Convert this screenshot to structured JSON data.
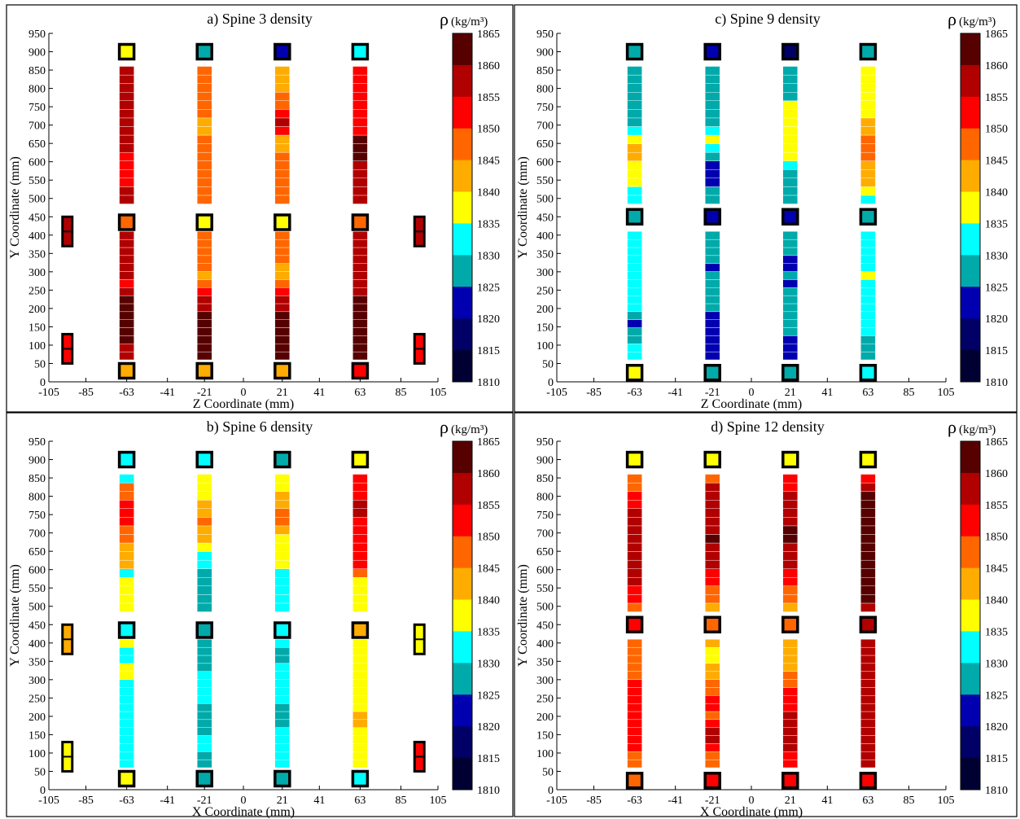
{
  "colorbar": {
    "label_symbol": "ρ",
    "label_unit": "(kg/m³)",
    "ticks": [
      1865,
      1860,
      1855,
      1850,
      1845,
      1840,
      1835,
      1830,
      1825,
      1820,
      1815,
      1810
    ],
    "bins": [
      {
        "min": 1860,
        "color": "#560000"
      },
      {
        "min": 1855,
        "color": "#b10000"
      },
      {
        "min": 1850,
        "color": "#ff0000"
      },
      {
        "min": 1845,
        "color": "#ff6600"
      },
      {
        "min": 1840,
        "color": "#ffac00"
      },
      {
        "min": 1835,
        "color": "#ffff00"
      },
      {
        "min": 1830,
        "color": "#00ffff"
      },
      {
        "min": 1825,
        "color": "#00aaaa"
      },
      {
        "min": 1820,
        "color": "#0000b0"
      },
      {
        "min": 1815,
        "color": "#000066"
      },
      {
        "min": 1810,
        "color": "#000033"
      }
    ]
  },
  "chart_data": [
    {
      "type": "heatmap",
      "title": "a)  Spine 3 density",
      "xlabel": "Z Coordinate (mm)",
      "ylabel": "Y Coordinate (mm)",
      "xlim": [
        -105,
        105
      ],
      "ylim": [
        0,
        950
      ],
      "xticks": [
        -105,
        -85,
        -63,
        -41,
        -21,
        0,
        21,
        41,
        63,
        85,
        105
      ],
      "yticks": [
        0,
        50,
        100,
        150,
        200,
        250,
        300,
        350,
        400,
        450,
        500,
        550,
        600,
        650,
        700,
        750,
        800,
        850,
        900,
        950
      ],
      "columns": [
        {
          "x": -63,
          "density": [
            1857,
            1857,
            1862,
            1862,
            1862,
            1862,
            1862,
            1862,
            1857,
            1852,
            1857,
            1857,
            1857,
            1857,
            1857,
            1857,
            1857,
            1857,
            1852,
            1852,
            1852,
            1852,
            1857,
            1857,
            1857,
            1857,
            1857,
            1857,
            1857,
            1857,
            1857,
            1857
          ]
        },
        {
          "x": -21,
          "density": [
            1862,
            1862,
            1862,
            1862,
            1862,
            1862,
            1857,
            1857,
            1852,
            1847,
            1843,
            1847,
            1847,
            1847,
            1847,
            1847,
            1847,
            1847,
            1847,
            1847,
            1847,
            1847,
            1847,
            1847,
            1843,
            1843,
            1847,
            1847,
            1847,
            1847,
            1847,
            1847
          ]
        },
        {
          "x": 21,
          "density": [
            1862,
            1862,
            1862,
            1862,
            1862,
            1862,
            1857,
            1857,
            1852,
            1847,
            1843,
            1843,
            1847,
            1847,
            1847,
            1847,
            1847,
            1847,
            1847,
            1847,
            1847,
            1847,
            1843,
            1843,
            1852,
            1857,
            1852,
            1847,
            1847,
            1843,
            1843,
            1843
          ]
        },
        {
          "x": 63,
          "density": [
            1862,
            1862,
            1862,
            1862,
            1862,
            1862,
            1862,
            1862,
            1857,
            1857,
            1857,
            1857,
            1857,
            1857,
            1857,
            1857,
            1857,
            1857,
            1857,
            1857,
            1857,
            1862,
            1862,
            1862,
            1852,
            1852,
            1852,
            1852,
            1852,
            1852,
            1852,
            1852
          ]
        }
      ],
      "nodes": [
        {
          "x": -63,
          "y": 900,
          "density": 1837
        },
        {
          "x": -21,
          "y": 900,
          "density": 1827
        },
        {
          "x": 21,
          "y": 900,
          "density": 1822
        },
        {
          "x": 63,
          "y": 900,
          "density": 1832
        },
        {
          "x": -63,
          "y": 435,
          "density": 1847
        },
        {
          "x": -21,
          "y": 435,
          "density": 1837
        },
        {
          "x": 21,
          "y": 435,
          "density": 1837
        },
        {
          "x": 63,
          "y": 435,
          "density": 1847
        },
        {
          "x": -63,
          "y": 30,
          "density": 1843
        },
        {
          "x": -21,
          "y": 30,
          "density": 1843
        },
        {
          "x": 21,
          "y": 30,
          "density": 1843
        },
        {
          "x": 63,
          "y": 30,
          "density": 1852
        }
      ],
      "side_markers": [
        {
          "x": -95,
          "y": 410,
          "density": 1857
        },
        {
          "x": 95,
          "y": 410,
          "density": 1857
        },
        {
          "x": -95,
          "y": 90,
          "density": 1852
        },
        {
          "x": 95,
          "y": 90,
          "density": 1852
        }
      ]
    },
    {
      "type": "heatmap",
      "title": "c) Spine 9 density",
      "xlabel": "Z Coordinate (mm)",
      "ylabel": "Y Coordinate (mm)",
      "xlim": [
        -105,
        105
      ],
      "ylim": [
        0,
        950
      ],
      "xticks": [
        -105,
        -85,
        -63,
        -41,
        -21,
        0,
        21,
        41,
        63,
        85,
        105
      ],
      "yticks": [
        0,
        50,
        100,
        150,
        200,
        250,
        300,
        350,
        400,
        450,
        500,
        550,
        600,
        650,
        700,
        750,
        800,
        850,
        900,
        950
      ],
      "columns": [
        {
          "x": -63,
          "density": [
            1832,
            1832,
            1827,
            1827,
            1822,
            1827,
            1832,
            1832,
            1832,
            1832,
            1832,
            1832,
            1832,
            1832,
            1832,
            1832,
            1832,
            1832,
            1837,
            1837,
            1837,
            1843,
            1843,
            1837,
            1832,
            1827,
            1827,
            1827,
            1827,
            1827,
            1827,
            1827
          ]
        },
        {
          "x": -21,
          "density": [
            1822,
            1822,
            1822,
            1822,
            1822,
            1822,
            1827,
            1827,
            1827,
            1827,
            1827,
            1822,
            1827,
            1827,
            1827,
            1827,
            1827,
            1827,
            1822,
            1822,
            1822,
            1827,
            1832,
            1837,
            1832,
            1827,
            1827,
            1827,
            1827,
            1827,
            1827,
            1827
          ]
        },
        {
          "x": 21,
          "density": [
            1822,
            1822,
            1822,
            1827,
            1827,
            1827,
            1827,
            1827,
            1827,
            1822,
            1827,
            1822,
            1822,
            1827,
            1827,
            1827,
            1827,
            1827,
            1827,
            1827,
            1832,
            1837,
            1837,
            1837,
            1837,
            1837,
            1837,
            1837,
            1827,
            1827,
            1827,
            1827
          ]
        },
        {
          "x": 63,
          "density": [
            1827,
            1827,
            1827,
            1832,
            1832,
            1832,
            1832,
            1832,
            1832,
            1832,
            1837,
            1832,
            1832,
            1832,
            1832,
            1832,
            1832,
            1837,
            1843,
            1843,
            1843,
            1847,
            1847,
            1847,
            1843,
            1843,
            1837,
            1837,
            1837,
            1837,
            1837,
            1837
          ]
        }
      ],
      "nodes": [
        {
          "x": -63,
          "y": 900,
          "density": 1827
        },
        {
          "x": -21,
          "y": 900,
          "density": 1822
        },
        {
          "x": 21,
          "y": 900,
          "density": 1817
        },
        {
          "x": 63,
          "y": 900,
          "density": 1827
        },
        {
          "x": -63,
          "y": 450,
          "density": 1827
        },
        {
          "x": -21,
          "y": 450,
          "density": 1822
        },
        {
          "x": 21,
          "y": 450,
          "density": 1822
        },
        {
          "x": 63,
          "y": 450,
          "density": 1827
        },
        {
          "x": -63,
          "y": 25,
          "density": 1837
        },
        {
          "x": -21,
          "y": 25,
          "density": 1827
        },
        {
          "x": 21,
          "y": 25,
          "density": 1827
        },
        {
          "x": 63,
          "y": 25,
          "density": 1832
        }
      ],
      "side_markers": []
    },
    {
      "type": "heatmap",
      "title": "b) Spine 6 density",
      "xlabel": "X Coordinate (mm)",
      "ylabel": "Y Coordinate (mm)",
      "xlim": [
        -105,
        105
      ],
      "ylim": [
        0,
        950
      ],
      "xticks": [
        -105,
        -85,
        -63,
        -41,
        -21,
        0,
        21,
        41,
        63,
        85,
        105
      ],
      "yticks": [
        0,
        50,
        100,
        150,
        200,
        250,
        300,
        350,
        400,
        450,
        500,
        550,
        600,
        650,
        700,
        750,
        800,
        850,
        900,
        950
      ],
      "columns": [
        {
          "x": -63,
          "density": [
            1832,
            1832,
            1832,
            1832,
            1832,
            1832,
            1832,
            1832,
            1832,
            1832,
            1832,
            1837,
            1837,
            1832,
            1832,
            1837,
            1837,
            1837,
            1837,
            1837,
            1832,
            1843,
            1843,
            1843,
            1847,
            1847,
            1852,
            1852,
            1852,
            1847,
            1847,
            1832
          ]
        },
        {
          "x": -21,
          "density": [
            1827,
            1827,
            1832,
            1832,
            1827,
            1827,
            1827,
            1827,
            1832,
            1832,
            1832,
            1832,
            1827,
            1827,
            1827,
            1827,
            1827,
            1827,
            1827,
            1827,
            1827,
            1832,
            1832,
            1837,
            1843,
            1843,
            1847,
            1843,
            1843,
            1837,
            1837,
            1837
          ]
        },
        {
          "x": 21,
          "density": [
            1832,
            1832,
            1832,
            1832,
            1832,
            1827,
            1827,
            1827,
            1832,
            1832,
            1832,
            1832,
            1832,
            1827,
            1827,
            1832,
            1832,
            1832,
            1832,
            1832,
            1832,
            1837,
            1837,
            1837,
            1837,
            1843,
            1847,
            1847,
            1843,
            1843,
            1837,
            1837
          ]
        },
        {
          "x": 63,
          "density": [
            1837,
            1837,
            1837,
            1837,
            1837,
            1843,
            1843,
            1837,
            1837,
            1837,
            1837,
            1837,
            1837,
            1837,
            1837,
            1837,
            1837,
            1837,
            1837,
            1837,
            1847,
            1852,
            1852,
            1852,
            1852,
            1852,
            1852,
            1857,
            1857,
            1852,
            1852,
            1852
          ]
        }
      ],
      "nodes": [
        {
          "x": -63,
          "y": 900,
          "density": 1832
        },
        {
          "x": -21,
          "y": 900,
          "density": 1832
        },
        {
          "x": 21,
          "y": 900,
          "density": 1827
        },
        {
          "x": 63,
          "y": 900,
          "density": 1837
        },
        {
          "x": -63,
          "y": 435,
          "density": 1832
        },
        {
          "x": -21,
          "y": 435,
          "density": 1827
        },
        {
          "x": 21,
          "y": 435,
          "density": 1832
        },
        {
          "x": 63,
          "y": 435,
          "density": 1843
        },
        {
          "x": -63,
          "y": 30,
          "density": 1837
        },
        {
          "x": -21,
          "y": 30,
          "density": 1827
        },
        {
          "x": 21,
          "y": 30,
          "density": 1827
        },
        {
          "x": 63,
          "y": 30,
          "density": 1832
        }
      ],
      "side_markers": [
        {
          "x": -95,
          "y": 410,
          "density": 1843
        },
        {
          "x": 95,
          "y": 410,
          "density": 1837
        },
        {
          "x": -95,
          "y": 90,
          "density": 1837
        },
        {
          "x": 95,
          "y": 90,
          "density": 1852
        }
      ]
    },
    {
      "type": "heatmap",
      "title": "d) Spine 12 density",
      "xlabel": "X Coordinate (mm)",
      "ylabel": "Y Coordinate (mm)",
      "xlim": [
        -105,
        105
      ],
      "ylim": [
        0,
        950
      ],
      "xticks": [
        -105,
        -85,
        -63,
        -41,
        -21,
        0,
        21,
        41,
        63,
        85,
        105
      ],
      "yticks": [
        0,
        50,
        100,
        150,
        200,
        250,
        300,
        350,
        400,
        450,
        500,
        550,
        600,
        650,
        700,
        750,
        800,
        850,
        900,
        950
      ],
      "columns": [
        {
          "x": -63,
          "density": [
            1847,
            1847,
            1852,
            1852,
            1852,
            1852,
            1852,
            1852,
            1852,
            1852,
            1852,
            1847,
            1847,
            1847,
            1847,
            1847,
            1847,
            1852,
            1852,
            1857,
            1857,
            1857,
            1857,
            1857,
            1857,
            1857,
            1857,
            1857,
            1852,
            1852,
            1847,
            1847
          ]
        },
        {
          "x": -21,
          "density": [
            1847,
            1847,
            1852,
            1857,
            1857,
            1852,
            1847,
            1852,
            1852,
            1847,
            1847,
            1843,
            1843,
            1837,
            1837,
            1843,
            1843,
            1847,
            1847,
            1852,
            1852,
            1857,
            1857,
            1857,
            1862,
            1857,
            1857,
            1857,
            1857,
            1857,
            1857,
            1847
          ]
        },
        {
          "x": 21,
          "density": [
            1852,
            1852,
            1857,
            1857,
            1857,
            1857,
            1857,
            1852,
            1852,
            1852,
            1847,
            1847,
            1843,
            1843,
            1843,
            1843,
            1843,
            1847,
            1847,
            1852,
            1852,
            1857,
            1857,
            1857,
            1862,
            1862,
            1857,
            1857,
            1857,
            1857,
            1852,
            1852
          ]
        },
        {
          "x": 63,
          "density": [
            1857,
            1857,
            1857,
            1857,
            1857,
            1857,
            1857,
            1857,
            1857,
            1857,
            1857,
            1857,
            1857,
            1857,
            1857,
            1857,
            1857,
            1862,
            1862,
            1862,
            1862,
            1862,
            1862,
            1862,
            1862,
            1862,
            1862,
            1862,
            1862,
            1862,
            1857,
            1852
          ]
        }
      ],
      "nodes": [
        {
          "x": -63,
          "y": 900,
          "density": 1837
        },
        {
          "x": -21,
          "y": 900,
          "density": 1837
        },
        {
          "x": 21,
          "y": 900,
          "density": 1837
        },
        {
          "x": 63,
          "y": 900,
          "density": 1837
        },
        {
          "x": -63,
          "y": 450,
          "density": 1852
        },
        {
          "x": -21,
          "y": 450,
          "density": 1847
        },
        {
          "x": 21,
          "y": 450,
          "density": 1847
        },
        {
          "x": 63,
          "y": 450,
          "density": 1857
        },
        {
          "x": -63,
          "y": 25,
          "density": 1847
        },
        {
          "x": -21,
          "y": 25,
          "density": 1852
        },
        {
          "x": 21,
          "y": 25,
          "density": 1852
        },
        {
          "x": 63,
          "y": 25,
          "density": 1852
        }
      ],
      "side_markers": []
    }
  ]
}
